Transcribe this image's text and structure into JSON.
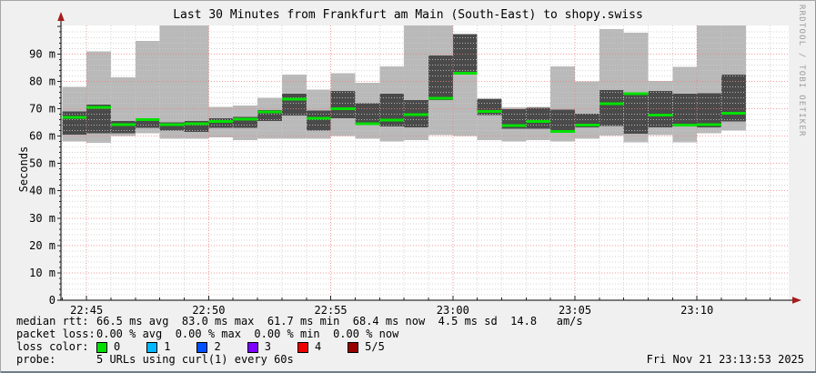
{
  "window": {
    "watermark": "RRDTOOL / TOBI OETIKER",
    "timestamp": "Fri Nov 21 23:13:53 2025"
  },
  "stats": {
    "median_label": "median rtt:",
    "median_value": "66.5 ms avg  83.0 ms max  61.7 ms min  68.4 ms now  4.5 ms sd  14.8   am/s",
    "loss_label": "packet loss:",
    "loss_value": "0.00 % avg  0.00 % max  0.00 % min  0.00 % now",
    "loss_color_label": "loss color:",
    "probe_label": "probe:",
    "probe_value": "5 URLs using curl(1) every 60s"
  },
  "legend": {
    "items": [
      {
        "label": "0",
        "color": "#00e000"
      },
      {
        "label": "1",
        "color": "#00b8ff"
      },
      {
        "label": "2",
        "color": "#0050ff"
      },
      {
        "label": "3",
        "color": "#7f00ff"
      },
      {
        "label": "4",
        "color": "#ee0000"
      },
      {
        "label": "5/5",
        "color": "#990000"
      }
    ]
  },
  "colors": {
    "canvas": "#f0f0f0",
    "plot_bg": "#ffffff",
    "smoke": "#b9b9b9",
    "dark": "#4a4a4a",
    "median": "#00e000",
    "grid_major": "#ef8181",
    "grid_minor": "#cccccc",
    "axis": "#000000",
    "arrow": "#a61c1c",
    "tick": "#222222"
  },
  "chart_data": {
    "type": "area",
    "subtype": "smokeping latency graph: light band = min-max smoke, dark band = inner percentile range, green line = median rtt (0 % loss)",
    "title": "Last 30 Minutes from Frankfurt am Main (South-East) to shopy.swiss",
    "xlabel": "",
    "ylabel": "Seconds",
    "y_unit": "milliseconds (tick suffix m = milli)",
    "ylim": [
      0,
      100.4
    ],
    "xlim": [
      "22:43:53",
      "23:13:53"
    ],
    "grid": "red dotted major grid, gray dotted minor grid",
    "legend_position": "below graph (loss color swatches)",
    "y_ticks": [
      {
        "v": 0,
        "label": "0"
      },
      {
        "v": 10,
        "label": "10 m"
      },
      {
        "v": 20,
        "label": "20 m"
      },
      {
        "v": 30,
        "label": "30 m"
      },
      {
        "v": 40,
        "label": "40 m"
      },
      {
        "v": 50,
        "label": "50 m"
      },
      {
        "v": 60,
        "label": "60 m"
      },
      {
        "v": 70,
        "label": "70 m"
      },
      {
        "v": 80,
        "label": "80 m"
      },
      {
        "v": 90,
        "label": "90 m"
      }
    ],
    "x_ticks": [
      "22:45",
      "22:50",
      "22:55",
      "23:00",
      "23:05",
      "23:10"
    ],
    "bar_interval_seconds": 60,
    "bars": [
      {
        "time": "22:44",
        "median": 66.8,
        "dark": [
          60.5,
          69.0
        ],
        "smoke": [
          58.0,
          78.0
        ]
      },
      {
        "time": "22:45",
        "median": 70.5,
        "dark": [
          61.0,
          71.5
        ],
        "smoke": [
          57.5,
          91.0
        ]
      },
      {
        "time": "22:46",
        "median": 64.1,
        "dark": [
          61.0,
          65.5
        ],
        "smoke": [
          60.0,
          81.5
        ]
      },
      {
        "time": "22:47",
        "median": 66.0,
        "dark": [
          63.0,
          66.5
        ],
        "smoke": [
          61.0,
          94.7
        ]
      },
      {
        "time": "22:48",
        "median": 64.2,
        "dark": [
          62.0,
          65.0
        ],
        "smoke": [
          59.0,
          100.4
        ]
      },
      {
        "time": "22:49",
        "median": 64.5,
        "dark": [
          61.5,
          65.5
        ],
        "smoke": [
          59.0,
          100.4
        ]
      },
      {
        "time": "22:50",
        "median": 65.4,
        "dark": [
          63.0,
          66.5
        ],
        "smoke": [
          59.5,
          70.7
        ]
      },
      {
        "time": "22:51",
        "median": 66.2,
        "dark": [
          63.0,
          67.0
        ],
        "smoke": [
          58.5,
          71.2
        ]
      },
      {
        "time": "22:52",
        "median": 68.8,
        "dark": [
          65.5,
          69.5
        ],
        "smoke": [
          59.0,
          74.0
        ]
      },
      {
        "time": "22:53",
        "median": 73.4,
        "dark": [
          67.5,
          75.5
        ],
        "smoke": [
          59.0,
          82.5
        ]
      },
      {
        "time": "22:54",
        "median": 66.5,
        "dark": [
          62.0,
          69.3
        ],
        "smoke": [
          59.0,
          77.0
        ]
      },
      {
        "time": "22:55",
        "median": 70.0,
        "dark": [
          66.5,
          76.5
        ],
        "smoke": [
          60.0,
          83.0
        ]
      },
      {
        "time": "22:56",
        "median": 64.5,
        "dark": [
          64.0,
          72.0
        ],
        "smoke": [
          59.0,
          79.5
        ]
      },
      {
        "time": "22:57",
        "median": 65.8,
        "dark": [
          63.5,
          75.5
        ],
        "smoke": [
          58.0,
          85.5
        ]
      },
      {
        "time": "22:58",
        "median": 67.9,
        "dark": [
          63.1,
          73.2
        ],
        "smoke": [
          58.5,
          100.4
        ]
      },
      {
        "time": "22:59",
        "median": 73.8,
        "dark": [
          73.2,
          89.5
        ],
        "smoke": [
          60.3,
          100.4
        ]
      },
      {
        "time": "23:00",
        "median": 83.0,
        "dark": [
          83.0,
          97.3
        ],
        "smoke": [
          60.0,
          97.3
        ]
      },
      {
        "time": "23:01",
        "median": 69.0,
        "dark": [
          67.7,
          73.5
        ],
        "smoke": [
          58.5,
          73.8
        ]
      },
      {
        "time": "23:02",
        "median": 63.8,
        "dark": [
          62.6,
          69.9
        ],
        "smoke": [
          58.0,
          70.5
        ]
      },
      {
        "time": "23:03",
        "median": 65.4,
        "dark": [
          62.6,
          70.4
        ],
        "smoke": [
          58.5,
          70.6
        ]
      },
      {
        "time": "23:04",
        "median": 61.7,
        "dark": [
          61.7,
          69.6
        ],
        "smoke": [
          58.0,
          85.5
        ]
      },
      {
        "time": "23:05",
        "median": 64.0,
        "dark": [
          63.2,
          68.2
        ],
        "smoke": [
          59.0,
          80.0
        ]
      },
      {
        "time": "23:06",
        "median": 71.8,
        "dark": [
          63.7,
          76.8
        ],
        "smoke": [
          60.2,
          99.0
        ]
      },
      {
        "time": "23:07",
        "median": 75.5,
        "dark": [
          60.9,
          75.7
        ],
        "smoke": [
          57.7,
          97.8
        ]
      },
      {
        "time": "23:08",
        "median": 67.7,
        "dark": [
          63.2,
          76.4
        ],
        "smoke": [
          60.3,
          80.2
        ]
      },
      {
        "time": "23:09",
        "median": 64.0,
        "dark": [
          63.7,
          75.5
        ],
        "smoke": [
          57.7,
          85.3
        ]
      },
      {
        "time": "23:10",
        "median": 64.1,
        "dark": [
          63.2,
          75.7
        ],
        "smoke": [
          61.0,
          100.4
        ]
      },
      {
        "time": "23:11",
        "median": 68.4,
        "dark": [
          65.4,
          82.4
        ],
        "smoke": [
          62.0,
          100.4
        ]
      }
    ]
  }
}
